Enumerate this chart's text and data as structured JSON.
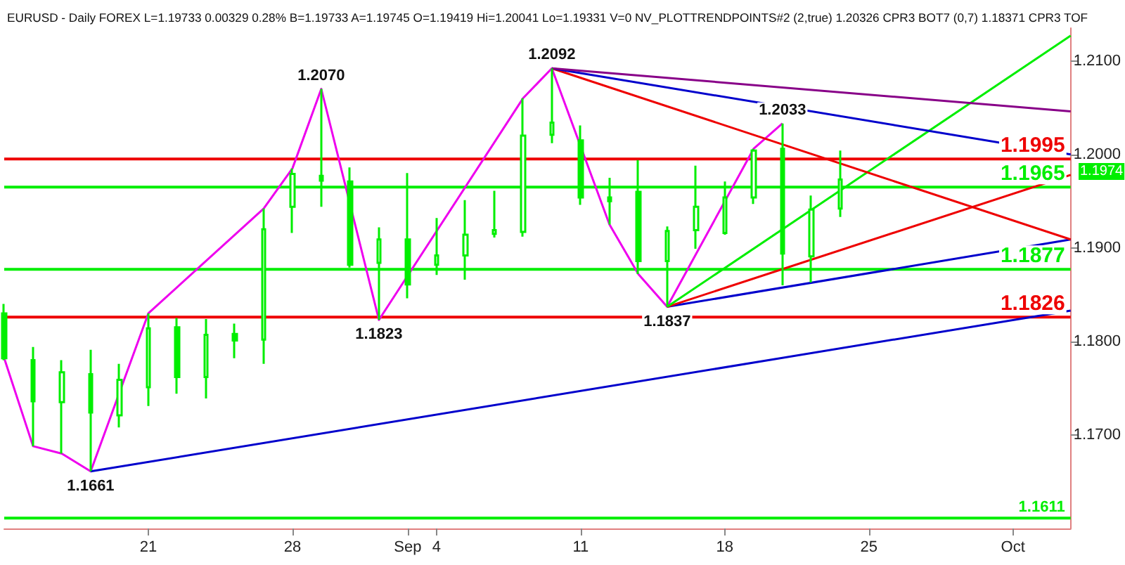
{
  "chart_data": {
    "type": "candlestick",
    "title": "EURUSD - Daily FOREX L=1.19733 0.00329 0.28% B=1.19733 A=1.19745 O=1.19419 Hi=1.20041 Lo=1.19331 V=0 NV_PLOTTRENDPOINTS#2 (2,true) 1.20326 CPR3 BOT7 (0,7) 1.18371 CPR3 TOF",
    "categories": [
      null,
      null,
      null,
      null,
      null,
      "21",
      null,
      null,
      null,
      null,
      "28",
      null,
      null,
      null,
      "Sep",
      "4",
      null,
      null,
      null,
      null,
      "11",
      null,
      null,
      null,
      null,
      "18",
      null,
      null,
      null,
      null,
      "25",
      null,
      null,
      null,
      null,
      "Oct",
      null,
      null
    ],
    "color": "#00ee00",
    "ohlc": [
      [
        1.183,
        1.184,
        1.178,
        1.1782
      ],
      [
        1.178,
        1.1794,
        1.1688,
        1.1736
      ],
      [
        1.1735,
        1.178,
        1.168,
        1.1767
      ],
      [
        1.1765,
        1.1791,
        1.1661,
        1.1724
      ],
      [
        1.1721,
        1.1776,
        1.1708,
        1.1759
      ],
      [
        1.1751,
        1.183,
        1.1731,
        1.1814
      ],
      [
        1.1815,
        1.1825,
        1.1744,
        1.1762
      ],
      [
        1.1762,
        1.1824,
        1.1739,
        1.1807
      ],
      [
        1.1808,
        1.1819,
        1.1782,
        1.1801
      ],
      [
        1.1802,
        1.1942,
        1.1776,
        1.192
      ],
      [
        1.1944,
        1.1985,
        1.1916,
        1.1979
      ],
      [
        1.1977,
        1.207,
        1.1944,
        1.1972
      ],
      [
        1.1971,
        1.1986,
        1.1879,
        1.1882
      ],
      [
        1.1884,
        1.1922,
        1.1823,
        1.1909
      ],
      [
        1.1909,
        1.198,
        1.1846,
        1.1861
      ],
      [
        1.1882,
        1.1932,
        1.1871,
        1.1892
      ],
      [
        1.1892,
        1.1951,
        1.1866,
        1.1914
      ],
      [
        1.1915,
        1.1961,
        1.1911,
        1.1919
      ],
      [
        1.1917,
        1.206,
        1.1912,
        1.202
      ],
      [
        1.2021,
        1.2092,
        1.2012,
        1.2034
      ],
      [
        1.2015,
        1.2031,
        1.1946,
        1.1954
      ],
      [
        1.1954,
        1.1975,
        1.1925,
        1.195
      ],
      [
        1.196,
        1.1994,
        1.1872,
        1.1886
      ],
      [
        1.1886,
        1.1923,
        1.1837,
        1.1918
      ],
      [
        1.1919,
        1.1988,
        1.1899,
        1.1944
      ],
      [
        1.1916,
        1.1971,
        1.1914,
        1.1954
      ],
      [
        1.1954,
        1.2006,
        1.1947,
        1.2004
      ],
      [
        1.2006,
        1.2033,
        1.186,
        1.1894
      ],
      [
        1.1891,
        1.1956,
        1.1863,
        1.1941
      ],
      [
        1.1942,
        1.2004,
        1.1933,
        1.1973
      ],
      null,
      null,
      null,
      null,
      null,
      null,
      null,
      null
    ],
    "series": [
      {
        "type": "line",
        "color": "#ee00ee",
        "values": [
          1.1782,
          1.1688,
          1.168,
          1.1661,
          null,
          1.183,
          null,
          null,
          null,
          1.1942,
          1.1985,
          1.207,
          null,
          1.1823,
          null,
          null,
          null,
          null,
          1.206,
          1.2092,
          null,
          1.1925,
          1.1872,
          1.1837,
          null,
          null,
          1.2006,
          1.2033,
          null,
          null,
          null,
          null,
          null,
          null,
          null,
          null,
          null,
          null
        ]
      },
      {
        "type": "line",
        "color": "#0000cc",
        "values": [
          null,
          null,
          null,
          1.1661,
          null,
          null,
          null,
          null,
          null,
          null,
          null,
          null,
          null,
          null,
          null,
          null,
          null,
          null,
          null,
          null,
          null,
          null,
          null,
          null,
          null,
          null,
          null,
          null,
          null,
          null,
          null,
          null,
          null,
          null,
          null,
          null,
          null,
          1.1833
        ]
      },
      {
        "type": "line",
        "color": "#0000cc",
        "values": [
          null,
          null,
          null,
          null,
          null,
          null,
          null,
          null,
          null,
          null,
          null,
          null,
          null,
          null,
          null,
          null,
          null,
          null,
          null,
          null,
          null,
          null,
          null,
          1.1837,
          null,
          null,
          null,
          null,
          null,
          null,
          null,
          null,
          null,
          null,
          null,
          null,
          null,
          1.1909
        ]
      },
      {
        "type": "line",
        "color": "#ee0000",
        "values": [
          null,
          null,
          null,
          null,
          null,
          null,
          null,
          null,
          null,
          null,
          null,
          null,
          null,
          null,
          null,
          null,
          null,
          null,
          null,
          null,
          null,
          null,
          null,
          1.1837,
          null,
          null,
          null,
          null,
          null,
          null,
          null,
          null,
          null,
          null,
          null,
          null,
          null,
          1.1978
        ]
      },
      {
        "type": "line",
        "color": "#00ee00",
        "values": [
          null,
          null,
          null,
          null,
          null,
          null,
          null,
          null,
          null,
          null,
          null,
          null,
          null,
          null,
          null,
          null,
          null,
          null,
          null,
          null,
          null,
          null,
          null,
          1.1837,
          null,
          null,
          null,
          null,
          null,
          null,
          null,
          null,
          null,
          null,
          null,
          null,
          null,
          1.2127
        ]
      },
      {
        "type": "line",
        "color": "#ee0000",
        "values": [
          null,
          null,
          null,
          null,
          null,
          null,
          null,
          null,
          null,
          null,
          null,
          null,
          null,
          null,
          null,
          null,
          null,
          null,
          null,
          1.2092,
          null,
          null,
          null,
          null,
          null,
          null,
          null,
          null,
          null,
          null,
          null,
          null,
          null,
          null,
          null,
          null,
          null,
          1.1909
        ]
      },
      {
        "type": "line",
        "color": "#0000cc",
        "values": [
          null,
          null,
          null,
          null,
          null,
          null,
          null,
          null,
          null,
          null,
          null,
          null,
          null,
          null,
          null,
          null,
          null,
          null,
          null,
          1.2092,
          null,
          null,
          null,
          null,
          null,
          null,
          null,
          null,
          null,
          null,
          null,
          null,
          null,
          null,
          null,
          null,
          null,
          1.2
        ]
      },
      {
        "type": "line",
        "color": "#880088",
        "values": [
          null,
          null,
          null,
          null,
          null,
          null,
          null,
          null,
          null,
          null,
          null,
          null,
          null,
          null,
          null,
          null,
          null,
          null,
          null,
          1.2092,
          null,
          null,
          null,
          null,
          null,
          null,
          null,
          null,
          null,
          null,
          null,
          null,
          null,
          null,
          null,
          null,
          null,
          1.2046
        ]
      }
    ],
    "ylim": [
      1.16,
      1.2135
    ],
    "yticks": [
      {
        "value": 1.21,
        "label": "1.2100"
      },
      {
        "value": 1.2,
        "label": "1.2000"
      },
      {
        "value": 1.19,
        "label": "1.1900"
      },
      {
        "value": 1.18,
        "label": "1.1800"
      },
      {
        "value": 1.17,
        "label": "1.1700"
      }
    ],
    "ref_lines": [
      {
        "axis": "y",
        "value": 1.1995,
        "label": "1.1995",
        "color": "#ee0000"
      },
      {
        "axis": "y",
        "value": 1.1965,
        "label": "1.1965",
        "color": "#00ee00"
      },
      {
        "axis": "y",
        "value": 1.1877,
        "label": "1.1877",
        "color": "#00ee00"
      },
      {
        "axis": "y",
        "value": 1.1826,
        "label": "1.1826",
        "color": "#ee0000"
      },
      {
        "axis": "y",
        "value": 1.1611,
        "label": "1.1611",
        "color": "#00ee00"
      }
    ],
    "annotations": [
      {
        "text": "1.1661",
        "y": 1.1661
      },
      {
        "text": "1.2070",
        "y": 1.207
      },
      {
        "text": "1.1823",
        "y": 1.1823
      },
      {
        "text": "1.2092",
        "y": 1.2092
      },
      {
        "text": "1.1837",
        "y": 1.1837
      },
      {
        "text": "1.2033",
        "y": 1.2033
      },
      "1.1974"
    ],
    "grid": false
  }
}
